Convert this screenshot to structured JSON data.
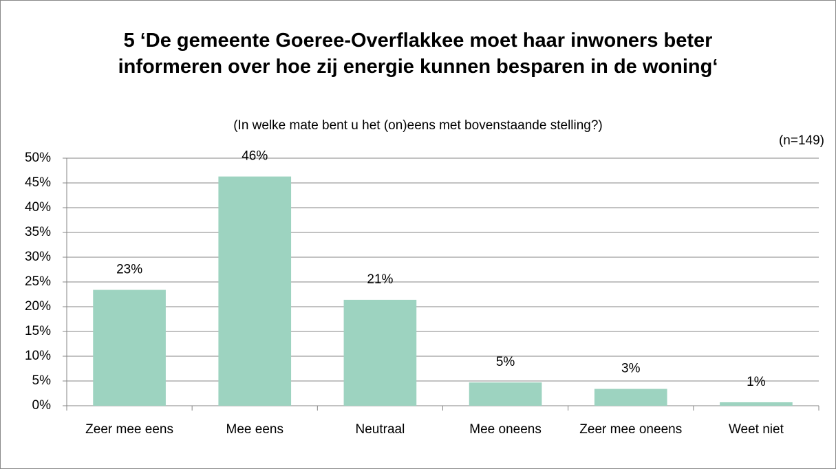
{
  "chart_data": {
    "type": "bar",
    "title": "5 ‘De gemeente Goeree-Overflakkee moet haar inwoners beter informeren over hoe zij energie kunnen besparen in de woning‘",
    "subtitle": "(In welke mate bent u het (on)eens met bovenstaande stelling?)",
    "annotation": "(n=149)",
    "categories": [
      "Zeer mee eens",
      "Mee eens",
      "Neutraal",
      "Mee oneens",
      "Zeer mee oneens",
      "Weet niet"
    ],
    "values": [
      23.4,
      46.3,
      21.4,
      4.7,
      3.4,
      0.7
    ],
    "value_labels": [
      "23%",
      "46%",
      "21%",
      "5%",
      "3%",
      "1%"
    ],
    "color": "#9dd3c0",
    "ylim": [
      0,
      50
    ],
    "yticks": [
      {
        "value": 0,
        "label": "0%"
      },
      {
        "value": 5,
        "label": "5%"
      },
      {
        "value": 10,
        "label": "10%"
      },
      {
        "value": 15,
        "label": "15%"
      },
      {
        "value": 20,
        "label": "20%"
      },
      {
        "value": 25,
        "label": "25%"
      },
      {
        "value": 30,
        "label": "30%"
      },
      {
        "value": 35,
        "label": "35%"
      },
      {
        "value": 40,
        "label": "40%"
      },
      {
        "value": 45,
        "label": "45%"
      },
      {
        "value": 50,
        "label": "50%"
      }
    ],
    "grid": true
  }
}
